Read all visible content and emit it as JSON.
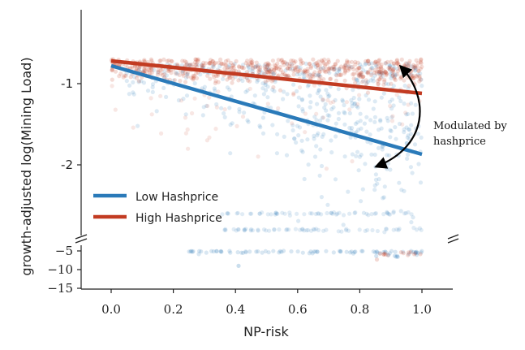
{
  "chart_data": {
    "type": "scatter",
    "xlabel": "NP-risk",
    "ylabel": "growth-adjusted log(Mining Load)",
    "xlim": [
      -0.1,
      1.1
    ],
    "x_ticks": [
      "0.0",
      "0.2",
      "0.4",
      "0.6",
      "0.8",
      "1.0"
    ],
    "upper_panel": {
      "ylim": [
        -2.8,
        -0.12
      ],
      "y_ticks": [
        "-1",
        "-2"
      ]
    },
    "lower_panel": {
      "ylim": [
        -15.5,
        -4.5
      ],
      "y_ticks": [
        "−5",
        "−10",
        "−15"
      ]
    },
    "broken_y_axis": true,
    "legend_placement": "lower-left",
    "series": [
      {
        "name": "Low Hashprice",
        "color": "#2a7ab9",
        "trend_line": {
          "x": [
            0.0,
            1.0
          ],
          "y": [
            -0.78,
            -1.87
          ]
        }
      },
      {
        "name": "High Hashprice",
        "color": "#c23b22",
        "trend_line": {
          "x": [
            0.0,
            1.0
          ],
          "y": [
            -0.72,
            -1.12
          ]
        }
      }
    ],
    "annotations": [
      {
        "text": "Modulated by",
        "target": "between-trend-lines"
      },
      {
        "text": "hashprice"
      }
    ]
  }
}
